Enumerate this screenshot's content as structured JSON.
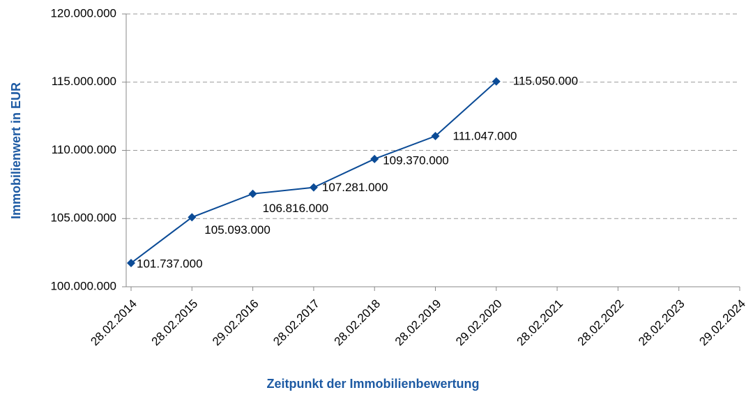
{
  "chart_data": {
    "type": "line",
    "x_label": "Zeitpunkt der Immobilienbewertung",
    "y_label": "Immobilienwert in EUR",
    "categories": [
      "28.02.2014",
      "28.02.2015",
      "29.02.2016",
      "28.02.2017",
      "28.02.2018",
      "28.02.2019",
      "29.02.2020",
      "28.02.2021",
      "28.02.2022",
      "28.02.2023",
      "29.02.2024"
    ],
    "series": [
      {
        "color": "#0b4b96",
        "values": [
          101737000,
          105093000,
          106816000,
          107281000,
          109370000,
          111047000,
          115050000,
          null,
          null,
          null,
          null
        ],
        "value_labels": [
          "101.737.000",
          "105.093.000",
          "106.816.000",
          "107.281.000",
          "109.370.000",
          "111.047.000",
          "115.050.000",
          null,
          null,
          null,
          null
        ]
      }
    ],
    "ylim": [
      100000000,
      120000000
    ],
    "yticks": [
      {
        "value": 100000000,
        "label": "100.000.000"
      },
      {
        "value": 105000000,
        "label": "105.000.000"
      },
      {
        "value": 110000000,
        "label": "110.000.000"
      },
      {
        "value": 115000000,
        "label": "115.000.000"
      },
      {
        "value": 120000000,
        "label": "120.000.000"
      }
    ],
    "grid": true
  }
}
